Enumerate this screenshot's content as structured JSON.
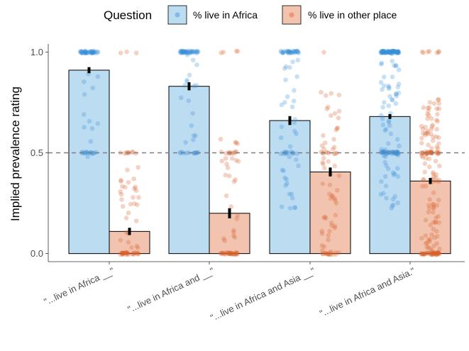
{
  "chart_data": {
    "type": "bar",
    "ylabel": "Implied prevalence rating",
    "xlabel": "",
    "ylim": [
      -0.04,
      1.04
    ],
    "y_ticks": [
      "0.0",
      "0.5",
      "1.0"
    ],
    "y_tick_values": [
      0.0,
      0.5,
      1.0
    ],
    "reference_line": 0.5,
    "legend_title": "Question",
    "legend_position": "top",
    "grid": false,
    "categories": [
      "\"...live in Africa __\"",
      "\"...live in Africa and __\"",
      "\"...live in Africa and Asia __\"",
      "\"...live in Africa and Asia.\""
    ],
    "series": [
      {
        "name": "% live in Africa",
        "fill": "#bcdcf2",
        "point_color": "#3b8fd6",
        "values": [
          0.91,
          0.83,
          0.66,
          0.68
        ],
        "error": [
          0.015,
          0.02,
          0.022,
          0.012
        ]
      },
      {
        "name": "% live in other place",
        "fill": "#f2c4b0",
        "point_color": "#d9622b",
        "values": [
          0.11,
          0.2,
          0.405,
          0.36
        ],
        "error": [
          0.018,
          0.025,
          0.022,
          0.015
        ]
      }
    ]
  }
}
